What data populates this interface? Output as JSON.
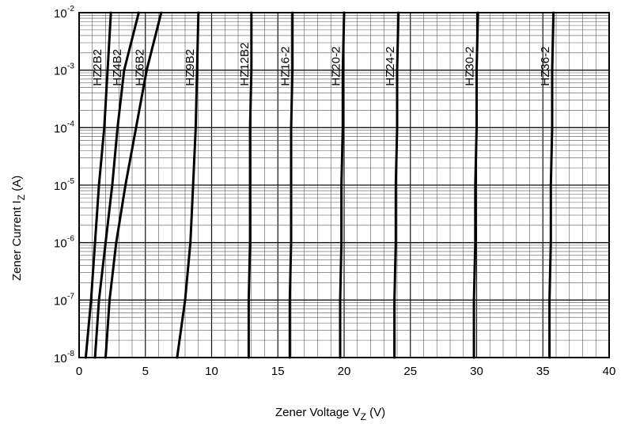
{
  "chart_data": {
    "type": "line",
    "title": "",
    "xlabel": {
      "main": "Zener Voltage V",
      "sub": "Z",
      "unit": " (V)"
    },
    "ylabel": {
      "main": "Zener Current I",
      "sub": "Z",
      "unit": "   (A)"
    },
    "xlim": [
      0,
      40
    ],
    "ylim": [
      1e-08,
      0.01
    ],
    "y_scale": "log",
    "grid": true,
    "x_ticks": [
      0,
      5,
      10,
      15,
      20,
      25,
      30,
      35,
      40
    ],
    "y_ticks": [
      {
        "value": 1e-08,
        "base": "10",
        "exp": "-8"
      },
      {
        "value": 1e-07,
        "base": "10",
        "exp": "-7"
      },
      {
        "value": 1e-06,
        "base": "10",
        "exp": "-6"
      },
      {
        "value": 1e-05,
        "base": "10",
        "exp": "-5"
      },
      {
        "value": 0.0001,
        "base": "10",
        "exp": "-4"
      },
      {
        "value": 0.001,
        "base": "10",
        "exp": "-3"
      },
      {
        "value": 0.01,
        "base": "10",
        "exp": "-2"
      }
    ],
    "series": [
      {
        "name": "HZ2B2",
        "x": [
          0.5,
          0.9,
          1.2,
          1.5,
          1.9,
          2.4
        ],
        "y": [
          1e-08,
          1e-07,
          1e-06,
          1e-05,
          0.0001,
          0.01
        ]
      },
      {
        "name": "HZ4B2",
        "x": [
          1.2,
          1.5,
          2.0,
          2.5,
          2.9,
          3.4,
          4.5
        ],
        "y": [
          1e-08,
          1e-07,
          1e-06,
          1e-05,
          0.0001,
          0.001,
          0.01
        ]
      },
      {
        "name": "HZ6B2",
        "x": [
          2.0,
          2.3,
          2.8,
          3.5,
          4.3,
          5.1,
          6.2
        ],
        "y": [
          1e-08,
          1e-07,
          1e-06,
          1e-05,
          0.0001,
          0.001,
          0.01
        ]
      },
      {
        "name": "HZ9B2",
        "x": [
          7.4,
          8.0,
          8.4,
          8.6,
          8.8,
          8.9,
          9.0
        ],
        "y": [
          1e-08,
          1e-07,
          1e-06,
          1e-05,
          0.0001,
          0.001,
          0.01
        ]
      },
      {
        "name": "HZ12B2",
        "x": [
          12.8,
          12.8,
          12.9,
          12.9,
          12.9,
          13.0,
          13.0
        ],
        "y": [
          1e-08,
          1e-07,
          1e-06,
          1e-05,
          0.0001,
          0.001,
          0.01
        ]
      },
      {
        "name": "HZ16-2",
        "x": [
          15.9,
          15.9,
          16.0,
          16.0,
          16.0,
          16.1,
          16.1
        ],
        "y": [
          1e-08,
          1e-07,
          1e-06,
          1e-05,
          0.0001,
          0.001,
          0.01
        ]
      },
      {
        "name": "HZ20-2",
        "x": [
          19.7,
          19.7,
          19.8,
          19.8,
          19.9,
          19.9,
          20.0
        ],
        "y": [
          1e-08,
          1e-07,
          1e-06,
          1e-05,
          0.0001,
          0.001,
          0.01
        ]
      },
      {
        "name": "HZ24-2",
        "x": [
          23.8,
          23.8,
          23.9,
          23.9,
          24.0,
          24.0,
          24.1
        ],
        "y": [
          1e-08,
          1e-07,
          1e-06,
          1e-05,
          0.0001,
          0.001,
          0.01
        ]
      },
      {
        "name": "HZ30-2",
        "x": [
          29.8,
          29.8,
          29.9,
          29.9,
          30.0,
          30.0,
          30.1
        ],
        "y": [
          1e-08,
          1e-07,
          1e-06,
          1e-05,
          0.0001,
          0.001,
          0.01
        ]
      },
      {
        "name": "HZ36-2",
        "x": [
          35.5,
          35.5,
          35.6,
          35.6,
          35.7,
          35.7,
          35.8
        ],
        "y": [
          1e-08,
          1e-07,
          1e-06,
          1e-05,
          0.0001,
          0.001,
          0.01
        ]
      }
    ],
    "colors": {
      "curve": "#000000",
      "major_grid": "#111111",
      "minor_grid": "#555555",
      "frame": "#000000"
    }
  }
}
